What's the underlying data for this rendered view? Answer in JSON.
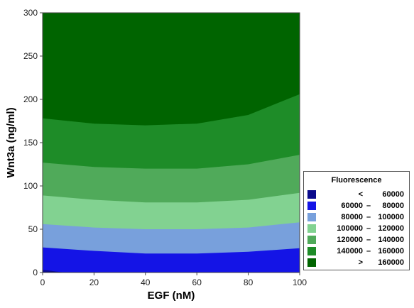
{
  "chart_data": {
    "type": "contour",
    "xlabel": "EGF (nM)",
    "ylabel": "Wnt3a (ng/ml)",
    "xlim": [
      0,
      100
    ],
    "ylim": [
      0,
      300
    ],
    "xticks": [
      0,
      20,
      40,
      60,
      80,
      100
    ],
    "yticks": [
      0,
      50,
      100,
      150,
      200,
      250,
      300
    ],
    "grid": false,
    "legend_position": "right",
    "legend_title": "Fluorescence",
    "legend": [
      {
        "lo": "<",
        "dash": "",
        "hi": "60000",
        "color": "#0a0a8c"
      },
      {
        "lo": "60000",
        "dash": "–",
        "hi": "80000",
        "color": "#1414e6"
      },
      {
        "lo": "80000",
        "dash": "–",
        "hi": "100000",
        "color": "#78a0dc"
      },
      {
        "lo": "100000",
        "dash": "–",
        "hi": "120000",
        "color": "#82d291"
      },
      {
        "lo": "120000",
        "dash": "–",
        "hi": "140000",
        "color": "#50aa5a"
      },
      {
        "lo": "140000",
        "dash": "–",
        "hi": "160000",
        "color": "#1e8c28"
      },
      {
        "lo": ">",
        "dash": "",
        "hi": "160000",
        "color": "#006400"
      }
    ],
    "contour_levels": [
      {
        "level": 80000,
        "x": [
          0,
          20,
          40,
          60,
          80,
          100
        ],
        "y": [
          29,
          25,
          22,
          22,
          24,
          28
        ]
      },
      {
        "level": 100000,
        "x": [
          0,
          20,
          40,
          60,
          80,
          100
        ],
        "y": [
          56,
          52,
          50,
          50,
          52,
          58
        ]
      },
      {
        "level": 120000,
        "x": [
          0,
          20,
          40,
          60,
          80,
          100
        ],
        "y": [
          89,
          84,
          81,
          81,
          84,
          92
        ]
      },
      {
        "level": 140000,
        "x": [
          0,
          20,
          40,
          60,
          80,
          100
        ],
        "y": [
          127,
          122,
          120,
          120,
          125,
          136
        ]
      },
      {
        "level": 160000,
        "x": [
          0,
          20,
          40,
          60,
          80,
          100
        ],
        "y": [
          178,
          172,
          170,
          172,
          182,
          206
        ]
      }
    ]
  }
}
